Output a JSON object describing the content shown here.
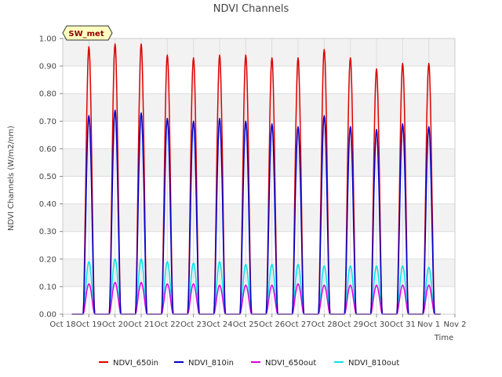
{
  "chart_data": {
    "type": "line",
    "title": "NDVI Channels",
    "xlabel": "Time",
    "ylabel": "NDVI Channels (W/m2/nm)",
    "badge": "SW_met",
    "ylim": [
      0,
      1.0
    ],
    "yticks": [
      "0.00",
      "0.10",
      "0.20",
      "0.30",
      "0.40",
      "0.50",
      "0.60",
      "0.70",
      "0.80",
      "0.90",
      "1.00"
    ],
    "xlim": [
      0,
      15
    ],
    "xticks": [
      "Oct 18",
      "Oct 19",
      "Oct 20",
      "Oct 21",
      "Oct 22",
      "Oct 23",
      "Oct 24",
      "Oct 25",
      "Oct 26",
      "Oct 27",
      "Oct 28",
      "Oct 29",
      "Oct 30",
      "Oct 31",
      "Nov 1",
      "Nov 2"
    ],
    "grid": true,
    "legend_position": "bottom",
    "day_centers": [
      1.0,
      2.0,
      3.0,
      4.0,
      5.0,
      6.0,
      7.0,
      8.0,
      9.0,
      10.0,
      11.0,
      12.0,
      13.0,
      14.0
    ],
    "series": [
      {
        "name": "NDVI_650in",
        "color": "#dd0000",
        "peaks": [
          0.97,
          0.98,
          0.98,
          0.94,
          0.93,
          0.94,
          0.94,
          0.93,
          0.93,
          0.96,
          0.93,
          0.89,
          0.91,
          0.91
        ]
      },
      {
        "name": "NDVI_810in",
        "color": "#0000cc",
        "peaks": [
          0.72,
          0.74,
          0.73,
          0.71,
          0.7,
          0.71,
          0.7,
          0.69,
          0.68,
          0.72,
          0.68,
          0.67,
          0.69,
          0.68
        ]
      },
      {
        "name": "NDVI_650out",
        "color": "#dd00dd",
        "peaks": [
          0.11,
          0.115,
          0.115,
          0.11,
          0.11,
          0.105,
          0.105,
          0.105,
          0.11,
          0.105,
          0.105,
          0.105,
          0.105,
          0.105
        ]
      },
      {
        "name": "NDVI_810out",
        "color": "#00e5e5",
        "peaks": [
          0.19,
          0.2,
          0.2,
          0.19,
          0.185,
          0.19,
          0.18,
          0.18,
          0.18,
          0.175,
          0.175,
          0.175,
          0.175,
          0.17
        ]
      }
    ]
  }
}
